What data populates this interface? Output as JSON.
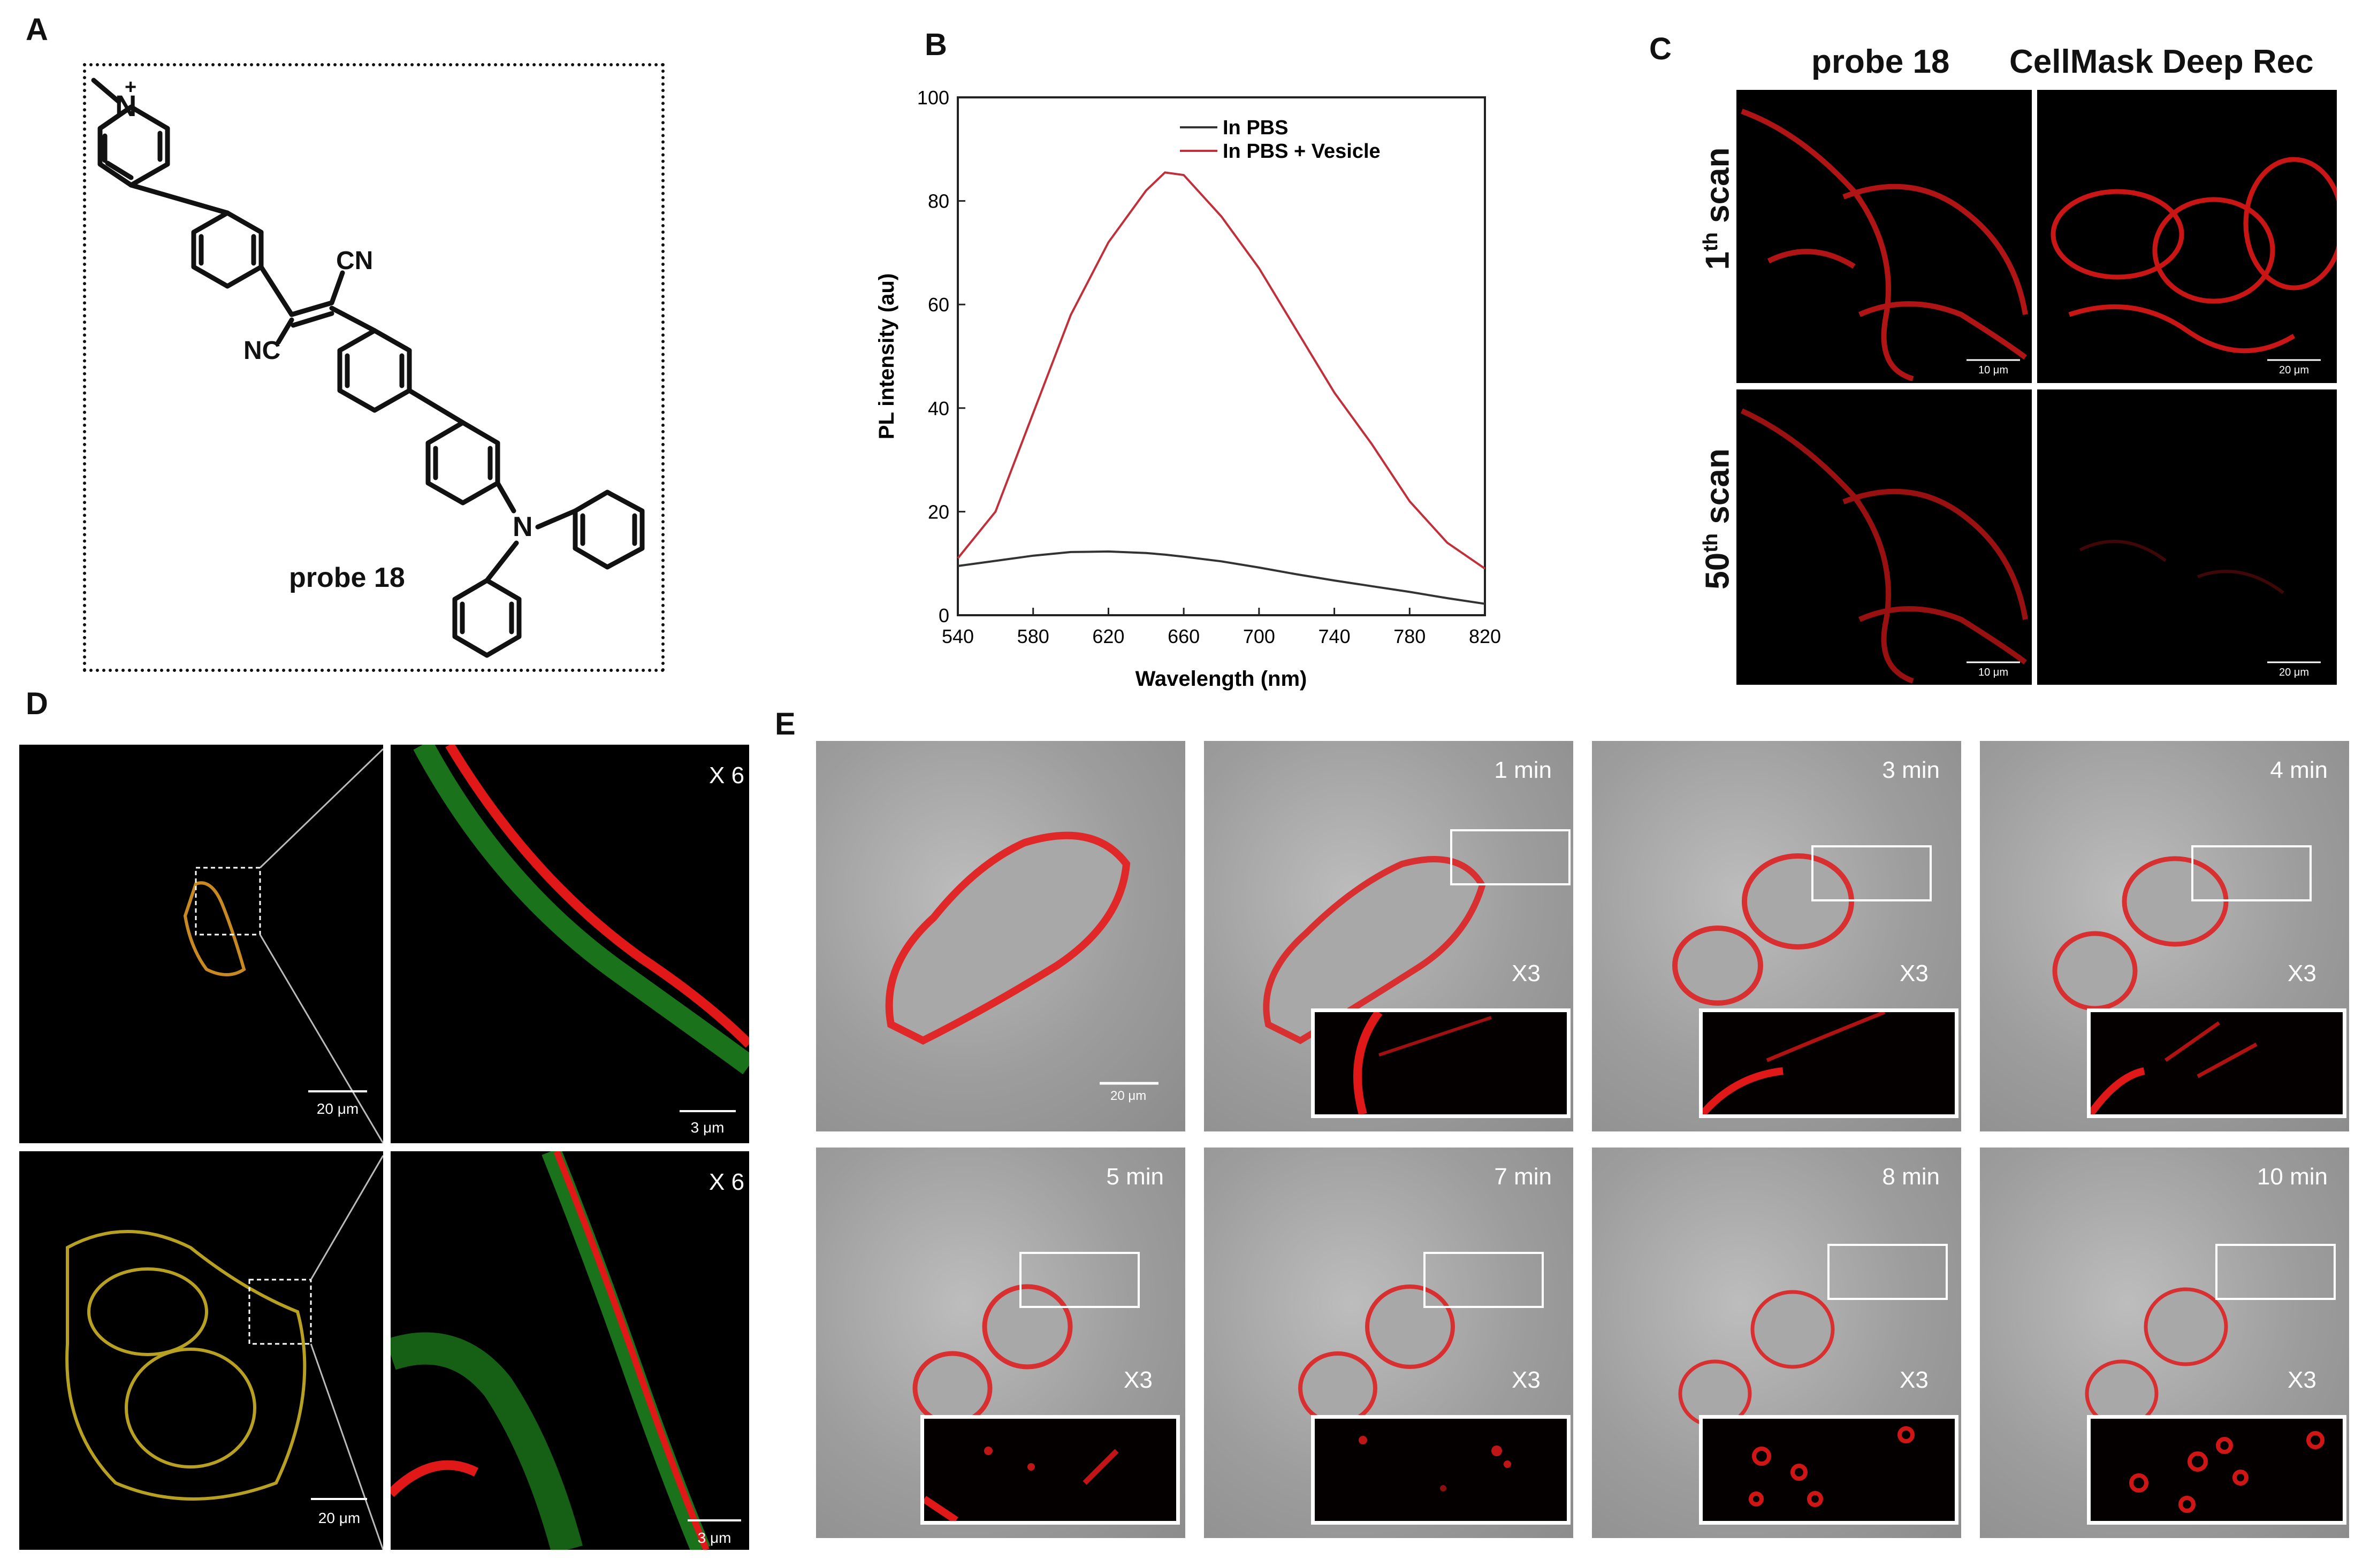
{
  "panels": {
    "a": "A",
    "b": "B",
    "c": "C",
    "d": "D",
    "e": "E"
  },
  "panel_a": {
    "n_plus": "+",
    "n_pyridinium": "N",
    "cn_top": "CN",
    "cn_bottom": "NC",
    "n_amine": "N",
    "probe": "probe 18"
  },
  "chart_data": {
    "type": "line",
    "title": "",
    "xlabel": "Wavelength (nm)",
    "ylabel": "PL intensity (au)",
    "xlim": [
      540,
      820
    ],
    "ylim": [
      0,
      100
    ],
    "xticks": [
      "540",
      "580",
      "620",
      "660",
      "700",
      "740",
      "780",
      "820"
    ],
    "yticks": [
      "0",
      "20",
      "40",
      "60",
      "80",
      "100"
    ],
    "legend_position": "top-right",
    "x": [
      540,
      560,
      580,
      600,
      620,
      640,
      650,
      660,
      680,
      700,
      720,
      740,
      760,
      780,
      800,
      820
    ],
    "series": [
      {
        "name": "In PBS",
        "color": "#333333",
        "values": [
          9.5,
          10.5,
          11.5,
          12.2,
          12.3,
          12.0,
          11.7,
          11.3,
          10.4,
          9.2,
          7.9,
          6.7,
          5.6,
          4.5,
          3.3,
          2.2
        ]
      },
      {
        "name": "In PBS + Vesicle",
        "color": "#c0303a",
        "values": [
          11,
          20,
          39,
          58,
          72,
          82,
          85.5,
          85,
          77,
          67,
          55,
          43,
          33,
          22,
          14,
          9
        ]
      }
    ]
  },
  "panel_c": {
    "col1": "probe 18",
    "col2": "CellMask Deep Rec",
    "row1": {
      "num": "1",
      "sup": "th",
      "word": " scan"
    },
    "row2": {
      "num": "50",
      "sup": "th",
      "word": " scan"
    },
    "scale": [
      "10 μm",
      "20 μm",
      "10 μm",
      "20 μm"
    ]
  },
  "panel_d": {
    "zoom": "X 6",
    "scale_full": "20 μm",
    "scale_zoom": "3 μm"
  },
  "panel_e": {
    "scale": "20 μm",
    "inset_zoom": "X3",
    "times": [
      "1 min",
      "3 min",
      "4 min",
      "5 min",
      "7 min",
      "8 min",
      "10 min"
    ]
  },
  "colors": {
    "membrane_red": "#e01818",
    "membrane_green": "#2cc02c",
    "line_pbs": "#333333",
    "line_vesicle": "#c0303a"
  }
}
